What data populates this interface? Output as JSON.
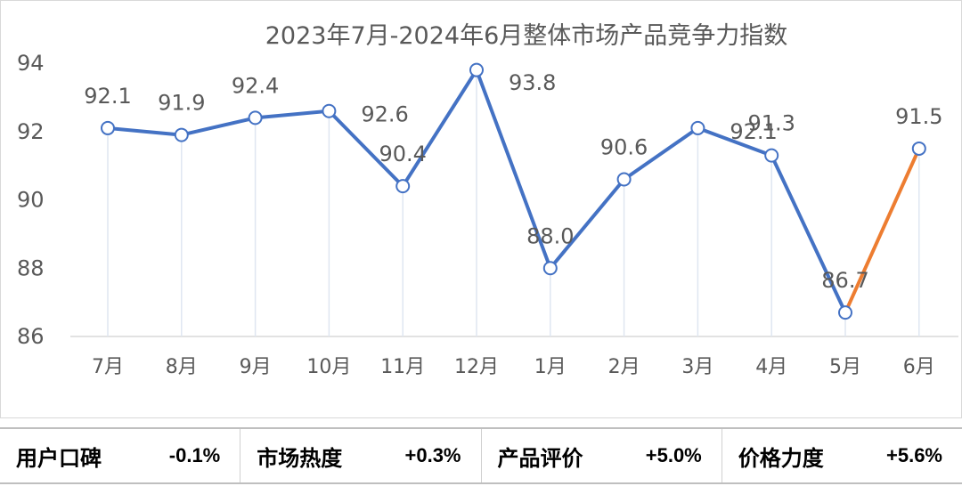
{
  "chart_data": {
    "type": "line",
    "title": "2023年7月-2024年6月整体市场产品竞争力指数",
    "categories": [
      "7月",
      "8月",
      "9月",
      "10月",
      "11月",
      "12月",
      "1月",
      "2月",
      "3月",
      "4月",
      "5月",
      "6月"
    ],
    "values": [
      92.1,
      91.9,
      92.4,
      92.6,
      90.4,
      93.8,
      88.0,
      90.6,
      92.1,
      91.3,
      86.7,
      91.5
    ],
    "data_labels": [
      "92.1",
      "91.9",
      "92.4",
      "92.6",
      "90.4",
      "93.8",
      "88.0",
      "90.6",
      "92.1",
      "91.3",
      "86.7",
      "91.5"
    ],
    "ylim": [
      86,
      94
    ],
    "yticks": [
      86,
      88,
      90,
      92,
      94
    ],
    "xlabel": "",
    "ylabel": "",
    "legend": "none",
    "grid": false,
    "line_color": "#4472c4",
    "highlight_segment_color": "#ed7d31",
    "highlight_segment": [
      "5月",
      "6月"
    ]
  },
  "metrics": [
    {
      "label": "用户口碑",
      "value": "-0.1%"
    },
    {
      "label": "市场热度",
      "value": "+0.3%"
    },
    {
      "label": "产品评价",
      "value": "+5.0%"
    },
    {
      "label": "价格力度",
      "value": "+5.6%"
    }
  ]
}
